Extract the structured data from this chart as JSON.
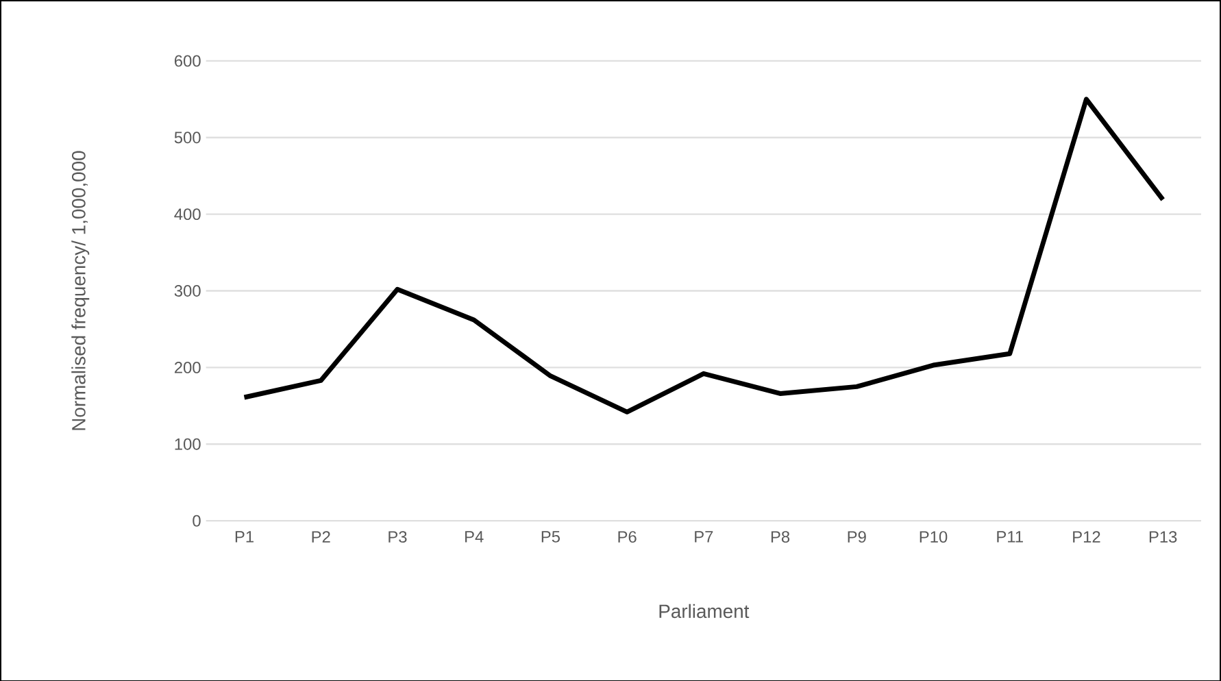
{
  "chart_data": {
    "type": "line",
    "xlabel": "Parliament",
    "ylabel": "Normalised frequency/ 1,000,000",
    "categories": [
      "P1",
      "P2",
      "P3",
      "P4",
      "P5",
      "P6",
      "P7",
      "P8",
      "P9",
      "P10",
      "P11",
      "P12",
      "P13"
    ],
    "series": [
      {
        "color": "#000000",
        "values": [
          161,
          183,
          302,
          262,
          189,
          142,
          192,
          166,
          175,
          203,
          218,
          550,
          419
        ]
      }
    ],
    "ylim": [
      0,
      600
    ],
    "yticks": [
      0,
      100,
      200,
      300,
      400,
      500,
      600
    ],
    "grid": "y",
    "marker": "none",
    "line_style": "solid"
  }
}
